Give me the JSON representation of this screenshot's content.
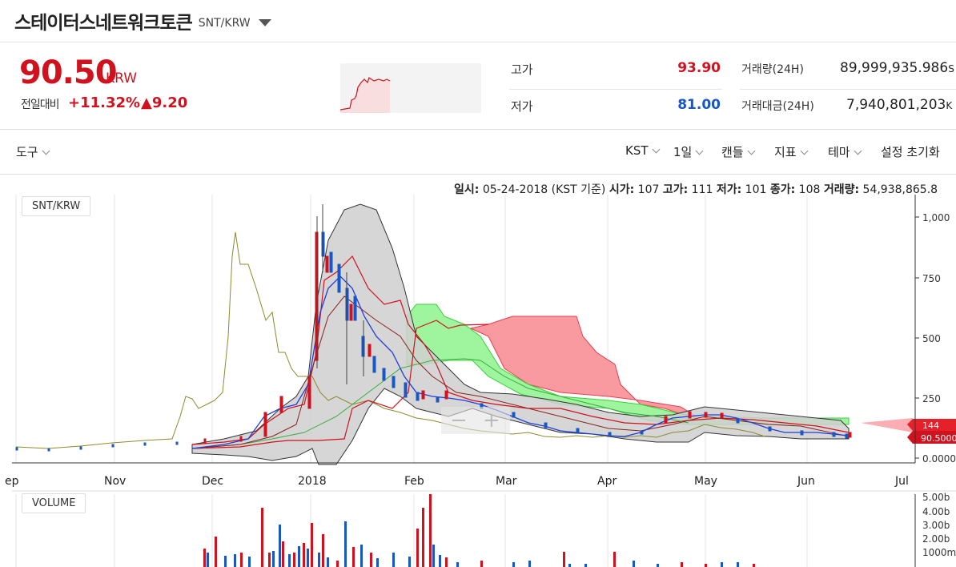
{
  "header": {
    "coin_name": "스테이터스네트워크토큰",
    "pair": "SNT/KRW"
  },
  "price": {
    "current": "90.50",
    "unit": "KRW",
    "change_label": "전일대비",
    "change_rate": "+11.32%",
    "change_amount": "▲9.20"
  },
  "stats": {
    "high_label": "고가",
    "high_value": "93.90",
    "low_label": "저가",
    "low_value": "81.00",
    "volume_label": "거래량(24H)",
    "volume_value": "89,999,935.986",
    "volume_unit": "S",
    "amount_label": "거래대금(24H)",
    "amount_value": "7,940,801,203",
    "amount_unit": "K"
  },
  "toolbar": {
    "tools": "도구",
    "timezone": "KST",
    "interval": "1일",
    "candle": "캔들",
    "indicator": "지표",
    "theme": "테마",
    "reset": "설정 초기화"
  },
  "info": {
    "date_label": "일시:",
    "date_value": "05-24-2018 (KST 기준)",
    "open_label": "시가:",
    "open_value": "107",
    "high_label": "고가:",
    "high_value": "111",
    "low_label": "저가:",
    "low_value": "101",
    "close_label": "종가:",
    "close_value": "108",
    "vol_label": "거래량:",
    "vol_value": "54,938,865.8"
  },
  "price_panel_label": "SNT/KRW",
  "volume_panel_label": "VOLUME",
  "price_markers": {
    "upper": "144",
    "current": "90.5000"
  },
  "colors": {
    "up": "#d0121e",
    "down": "#1957c2",
    "cloud_red": "#f99aa0",
    "cloud_green": "#9ef59e",
    "bollinger": "#c8c8c8"
  },
  "chart_data": [
    {
      "type": "candlestick",
      "title": "SNT/KRW",
      "x_ticks": [
        "ep",
        "Nov",
        "Dec",
        "2018",
        "Feb",
        "Mar",
        "Apr",
        "May",
        "Jun",
        "Jul"
      ],
      "y_ticks": [
        "1,000",
        "750",
        "500",
        "250",
        "0.00000"
      ],
      "ylim": [
        0,
        1050
      ],
      "close_series": [
        {
          "x": "2017-09-01",
          "y": 30
        },
        {
          "x": "2017-10-01",
          "y": 35
        },
        {
          "x": "2017-11-01",
          "y": 45
        },
        {
          "x": "2017-11-25",
          "y": 55
        },
        {
          "x": "2017-12-05",
          "y": 90
        },
        {
          "x": "2017-12-20",
          "y": 160
        },
        {
          "x": "2017-12-29",
          "y": 300
        },
        {
          "x": "2018-01-03",
          "y": 720
        },
        {
          "x": "2018-01-06",
          "y": 900
        },
        {
          "x": "2018-01-10",
          "y": 820
        },
        {
          "x": "2018-01-15",
          "y": 600
        },
        {
          "x": "2018-01-20",
          "y": 420
        },
        {
          "x": "2018-01-26",
          "y": 330
        },
        {
          "x": "2018-02-03",
          "y": 230
        },
        {
          "x": "2018-02-12",
          "y": 250
        },
        {
          "x": "2018-02-25",
          "y": 210
        },
        {
          "x": "2018-03-10",
          "y": 150
        },
        {
          "x": "2018-03-25",
          "y": 95
        },
        {
          "x": "2018-04-10",
          "y": 80
        },
        {
          "x": "2018-04-25",
          "y": 120
        },
        {
          "x": "2018-05-05",
          "y": 170
        },
        {
          "x": "2018-05-15",
          "y": 150
        },
        {
          "x": "2018-05-24",
          "y": 108
        },
        {
          "x": "2018-06-05",
          "y": 100
        },
        {
          "x": "2018-06-15",
          "y": 90.5
        }
      ]
    },
    {
      "type": "bar",
      "title": "VOLUME",
      "y_ticks": [
        "5.00b",
        "4.00b",
        "3.00b",
        "2.00b",
        "1000m"
      ]
    }
  ]
}
